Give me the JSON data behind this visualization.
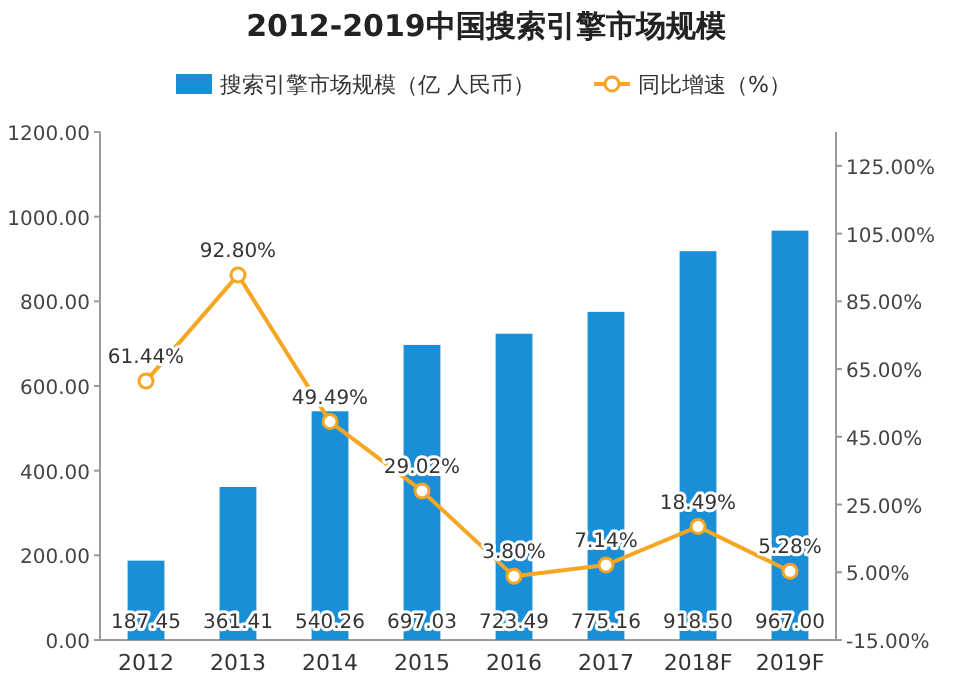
{
  "chart_data": {
    "type": "bar",
    "title": "2012-2019中国搜索引擎市场规模",
    "categories": [
      "2012",
      "2013",
      "2014",
      "2015",
      "2016",
      "2017",
      "2018F",
      "2019F"
    ],
    "series": [
      {
        "name": "搜索引擎市场规模（亿 人民币）",
        "color": "#1a8fd8",
        "values": [
          187.45,
          361.41,
          540.26,
          697.03,
          723.49,
          775.16,
          918.5,
          967.0
        ],
        "value_labels": [
          "187.45",
          "361.41",
          "540.26",
          "697.03",
          "723.49",
          "775.16",
          "918.50",
          "967.00"
        ]
      },
      {
        "name": "同比增速（%）",
        "type": "line",
        "axis": "y2",
        "color": "#f5a623",
        "marker": "circle",
        "values": [
          61.44,
          92.8,
          49.49,
          29.02,
          3.8,
          7.14,
          18.49,
          5.28
        ],
        "value_labels": [
          "61.44%",
          "92.80%",
          "49.49%",
          "29.02%",
          "3.80%",
          "7.14%",
          "18.49%",
          "5.28%"
        ]
      }
    ],
    "ylim": [
      0,
      1200
    ],
    "yticks": [
      {
        "value": 0,
        "label": "0.00"
      },
      {
        "value": 200,
        "label": "200.00"
      },
      {
        "value": 400,
        "label": "400.00"
      },
      {
        "value": 600,
        "label": "600.00"
      },
      {
        "value": 800,
        "label": "800.00"
      },
      {
        "value": 1000,
        "label": "1000.00"
      },
      {
        "value": 1200,
        "label": "1200.00"
      }
    ],
    "y2lim": [
      -15,
      135
    ],
    "y2ticks": [
      {
        "value": -15,
        "label": "-15.00%"
      },
      {
        "value": 5,
        "label": "5.00%"
      },
      {
        "value": 25,
        "label": "25.00%"
      },
      {
        "value": 45,
        "label": "45.00%"
      },
      {
        "value": 65,
        "label": "65.00%"
      },
      {
        "value": 85,
        "label": "85.00%"
      },
      {
        "value": 105,
        "label": "105.00%"
      },
      {
        "value": 125,
        "label": "125.00%"
      }
    ],
    "legend": "top"
  }
}
